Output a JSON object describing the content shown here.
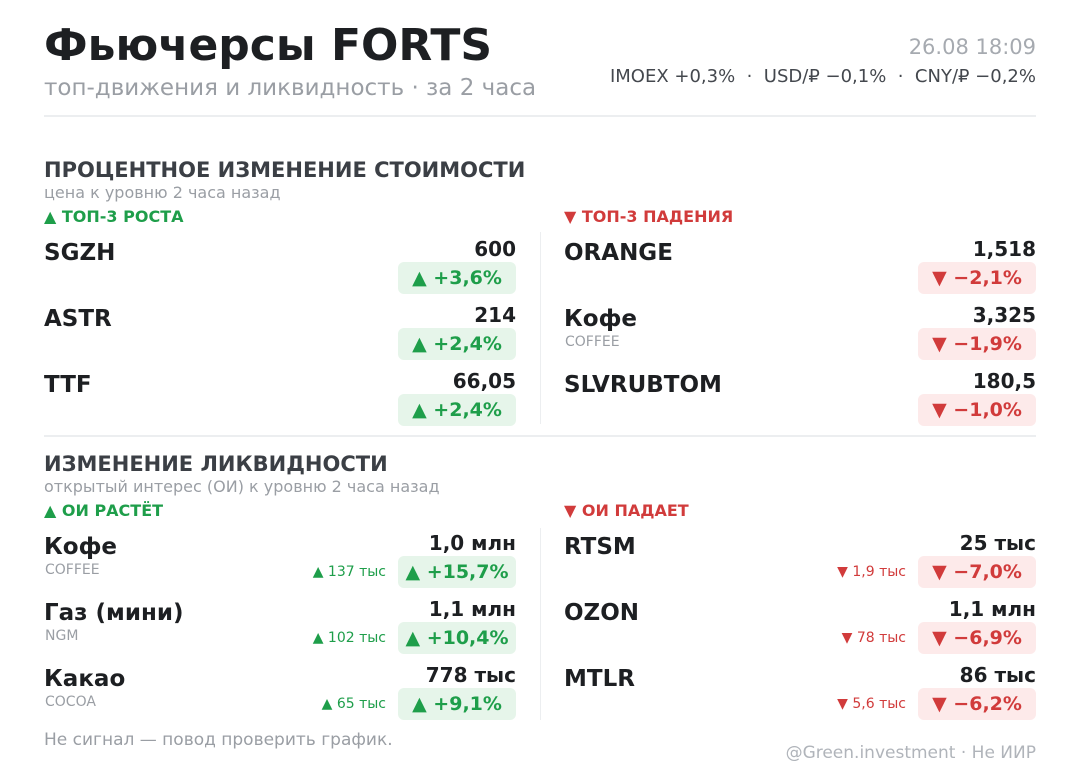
{
  "header": {
    "title": "Фьючерсы FORTS",
    "subtitle": "топ-движения и ликвидность · за 2 часа",
    "timestamp": "26.08 18:09",
    "indices": "IMOEX +0,3%  ·  USD/₽ −0,1%  ·  CNY/₽ −0,2%"
  },
  "sections": [
    {
      "title": "ПРОЦЕНТНОЕ ИЗМЕНЕНИЕ СТОИМОСТИ",
      "subtitle": "цена к уровню 2 часа назад",
      "columns": [
        {
          "heading": "▲ ТОП-3 РОСТА",
          "items": [
            {
              "name": "SGZH",
              "value": "600",
              "change": "▲ +3,6%"
            },
            {
              "name": "ASTR",
              "value": "214",
              "change": "▲ +2,4%"
            },
            {
              "name": "TTF",
              "value": "66,05",
              "change": "▲ +2,4%"
            }
          ]
        },
        {
          "heading": "▼ ТОП-3 ПАДЕНИЯ",
          "items": [
            {
              "name": "ORANGE",
              "value": "1,518",
              "change": "▼ −2,1%"
            },
            {
              "name": "Кофе",
              "sub": "COFFEE",
              "value": "3,325",
              "change": "▼ −1,9%"
            },
            {
              "name": "SLVRUBTOM",
              "value": "180,5",
              "change": "▼ −1,0%"
            }
          ]
        }
      ]
    },
    {
      "title": "ИЗМЕНЕНИЕ ЛИКВИДНОСТИ",
      "subtitle": "открытый интерес (ОИ) к уровню 2 часа назад",
      "columns": [
        {
          "heading": "▲ ОИ РАСТЁТ",
          "items": [
            {
              "name": "Кофе",
              "sub": "COFFEE",
              "value": "1,0 млн",
              "delta": "▲ 137 тыс",
              "change": "▲ +15,7%"
            },
            {
              "name": "Газ (мини)",
              "sub": "NGM",
              "value": "1,1 млн",
              "delta": "▲ 102 тыс",
              "change": "▲ +10,4%"
            },
            {
              "name": "Какао",
              "sub": "COCOA",
              "value": "778 тыс",
              "delta": "▲ 65 тыс",
              "change": "▲ +9,1%"
            }
          ]
        },
        {
          "heading": "▼ ОИ ПАДАЕТ",
          "items": [
            {
              "name": "RTSM",
              "value": "25 тыс",
              "delta": "▼ 1,9 тыс",
              "change": "▼ −7,0%"
            },
            {
              "name": "OZON",
              "value": "1,1 млн",
              "delta": "▼ 78 тыс",
              "change": "▼ −6,9%"
            },
            {
              "name": "MTLR",
              "value": "86 тыс",
              "delta": "▼ 5,6 тыс",
              "change": "▼ −6,2%"
            }
          ]
        }
      ]
    }
  ],
  "footer": {
    "note": "Не сигнал — повод проверить график.",
    "credit": "@Green.investment · Не ИИР"
  }
}
